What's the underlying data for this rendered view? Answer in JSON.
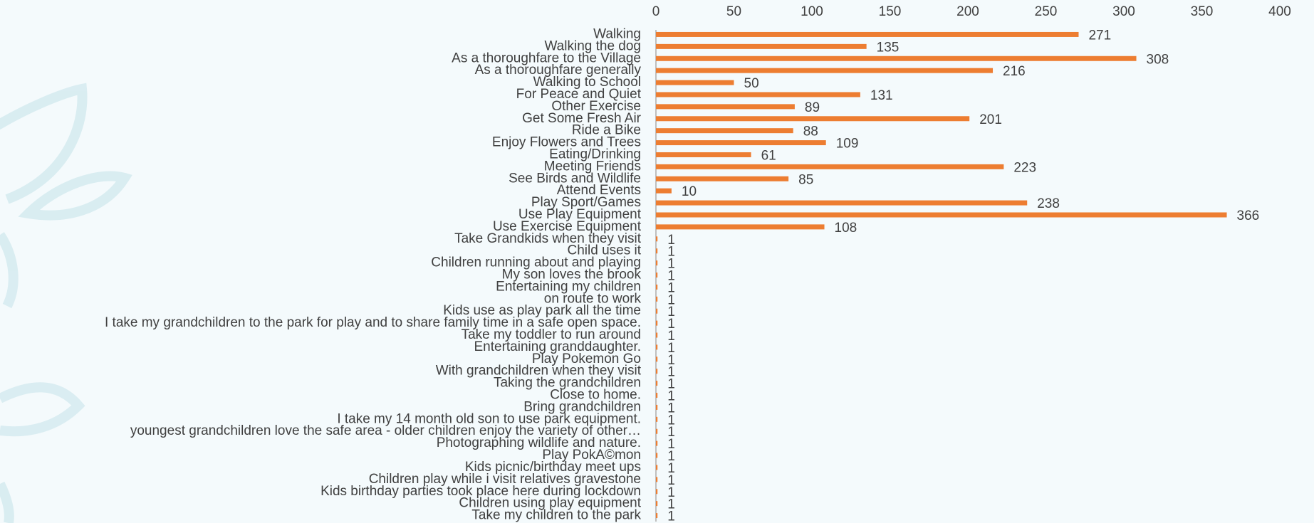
{
  "chart_data": {
    "type": "barh",
    "categories": [
      "Walking",
      "Walking the dog",
      "As a thoroughfare to the Village",
      "As a thoroughfare generally",
      "Walking to School",
      "For Peace and Quiet",
      "Other Exercise",
      "Get Some Fresh Air",
      "Ride a Bike",
      "Enjoy Flowers and Trees",
      "Eating/Drinking",
      "Meeting Friends",
      "See Birds and Wildlife",
      "Attend Events",
      "Play Sport/Games",
      "Use Play Equipment",
      "Use Exercise Equipment",
      "Take Grandkids when they visit",
      "Child uses it",
      "Children running about and playing",
      "My son loves the brook",
      "Entertaining my children",
      "on route to work",
      "Kids use as play park all the time",
      "I take my grandchildren to the park for play and to share family time in a safe open space.",
      "Take my toddler to run around",
      "Entertaining granddaughter.",
      "Play Pokemon Go",
      "With grandchildren when they visit",
      "Taking the grandchildren",
      "Close to home.",
      "Bring grandchildren",
      "I take my 14 month old son to use park equipment.",
      "youngest grandchildren love the safe area - older children enjoy the variety of other…",
      "Photographing wildlife and nature.",
      "Play PokA©mon",
      "Kids picnic/birthday meet ups",
      "Children play while i visit relatives gravestone",
      "Kids birthday parties took place here during lockdown",
      "Children using play equipment",
      "Take my children to the park"
    ],
    "values": [
      271,
      135,
      308,
      216,
      50,
      131,
      89,
      201,
      88,
      109,
      61,
      223,
      85,
      10,
      238,
      366,
      108,
      1,
      1,
      1,
      1,
      1,
      1,
      1,
      1,
      1,
      1,
      1,
      1,
      1,
      1,
      1,
      1,
      1,
      1,
      1,
      1,
      1,
      1,
      1,
      1
    ],
    "color": "#ed7d31",
    "xlim": [
      0,
      400
    ],
    "xticks": [
      0,
      50,
      100,
      150,
      200,
      250,
      300,
      350,
      400
    ]
  }
}
